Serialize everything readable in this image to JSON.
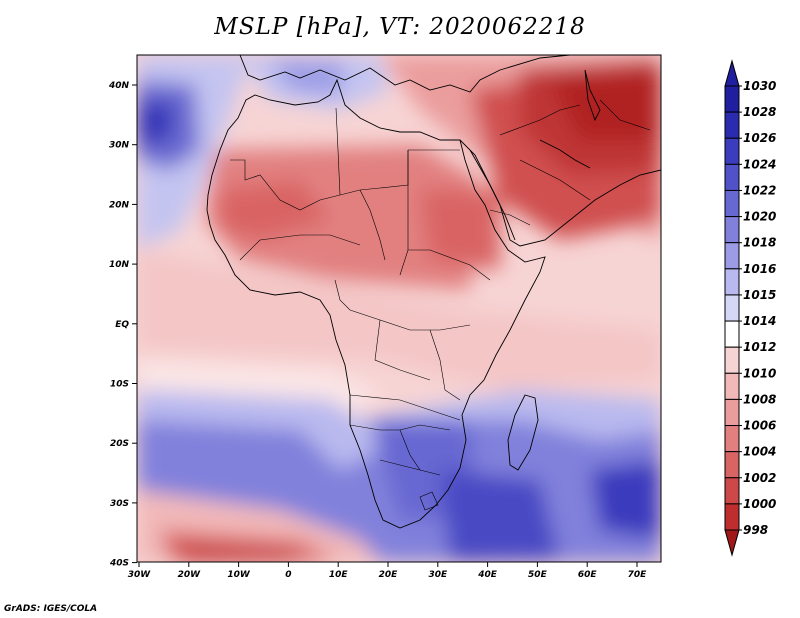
{
  "title": "MSLP [hPa], VT: 2020062218",
  "credit": "GrADS: IGES/COLA",
  "lat_labels": [
    "40N",
    "30N",
    "20N",
    "10N",
    "EQ",
    "10S",
    "20S",
    "30S",
    "40S"
  ],
  "lon_labels": [
    "30W",
    "20W",
    "10W",
    "0",
    "10E",
    "20E",
    "30E",
    "40E",
    "50E",
    "60E",
    "70E"
  ],
  "colorbar": {
    "levels": [
      "1030",
      "1028",
      "1026",
      "1024",
      "1022",
      "1020",
      "1018",
      "1016",
      "1015",
      "1014",
      "1012",
      "1010",
      "1008",
      "1006",
      "1004",
      "1002",
      "1000",
      "998"
    ],
    "colors": [
      "#1f1fa0",
      "#2b2bb0",
      "#3c3cbe",
      "#5151c8",
      "#6868d2",
      "#8181dc",
      "#9c9ce6",
      "#b9b9ef",
      "#d6d6f7",
      "#ffffff",
      "#f7d4d4",
      "#f2b9b9",
      "#eb9d9d",
      "#e28080",
      "#d96464",
      "#cd4848",
      "#bf2e2e",
      "#a01818"
    ]
  },
  "colors": {
    "land_border": "#000000",
    "background": "#ffffff"
  }
}
